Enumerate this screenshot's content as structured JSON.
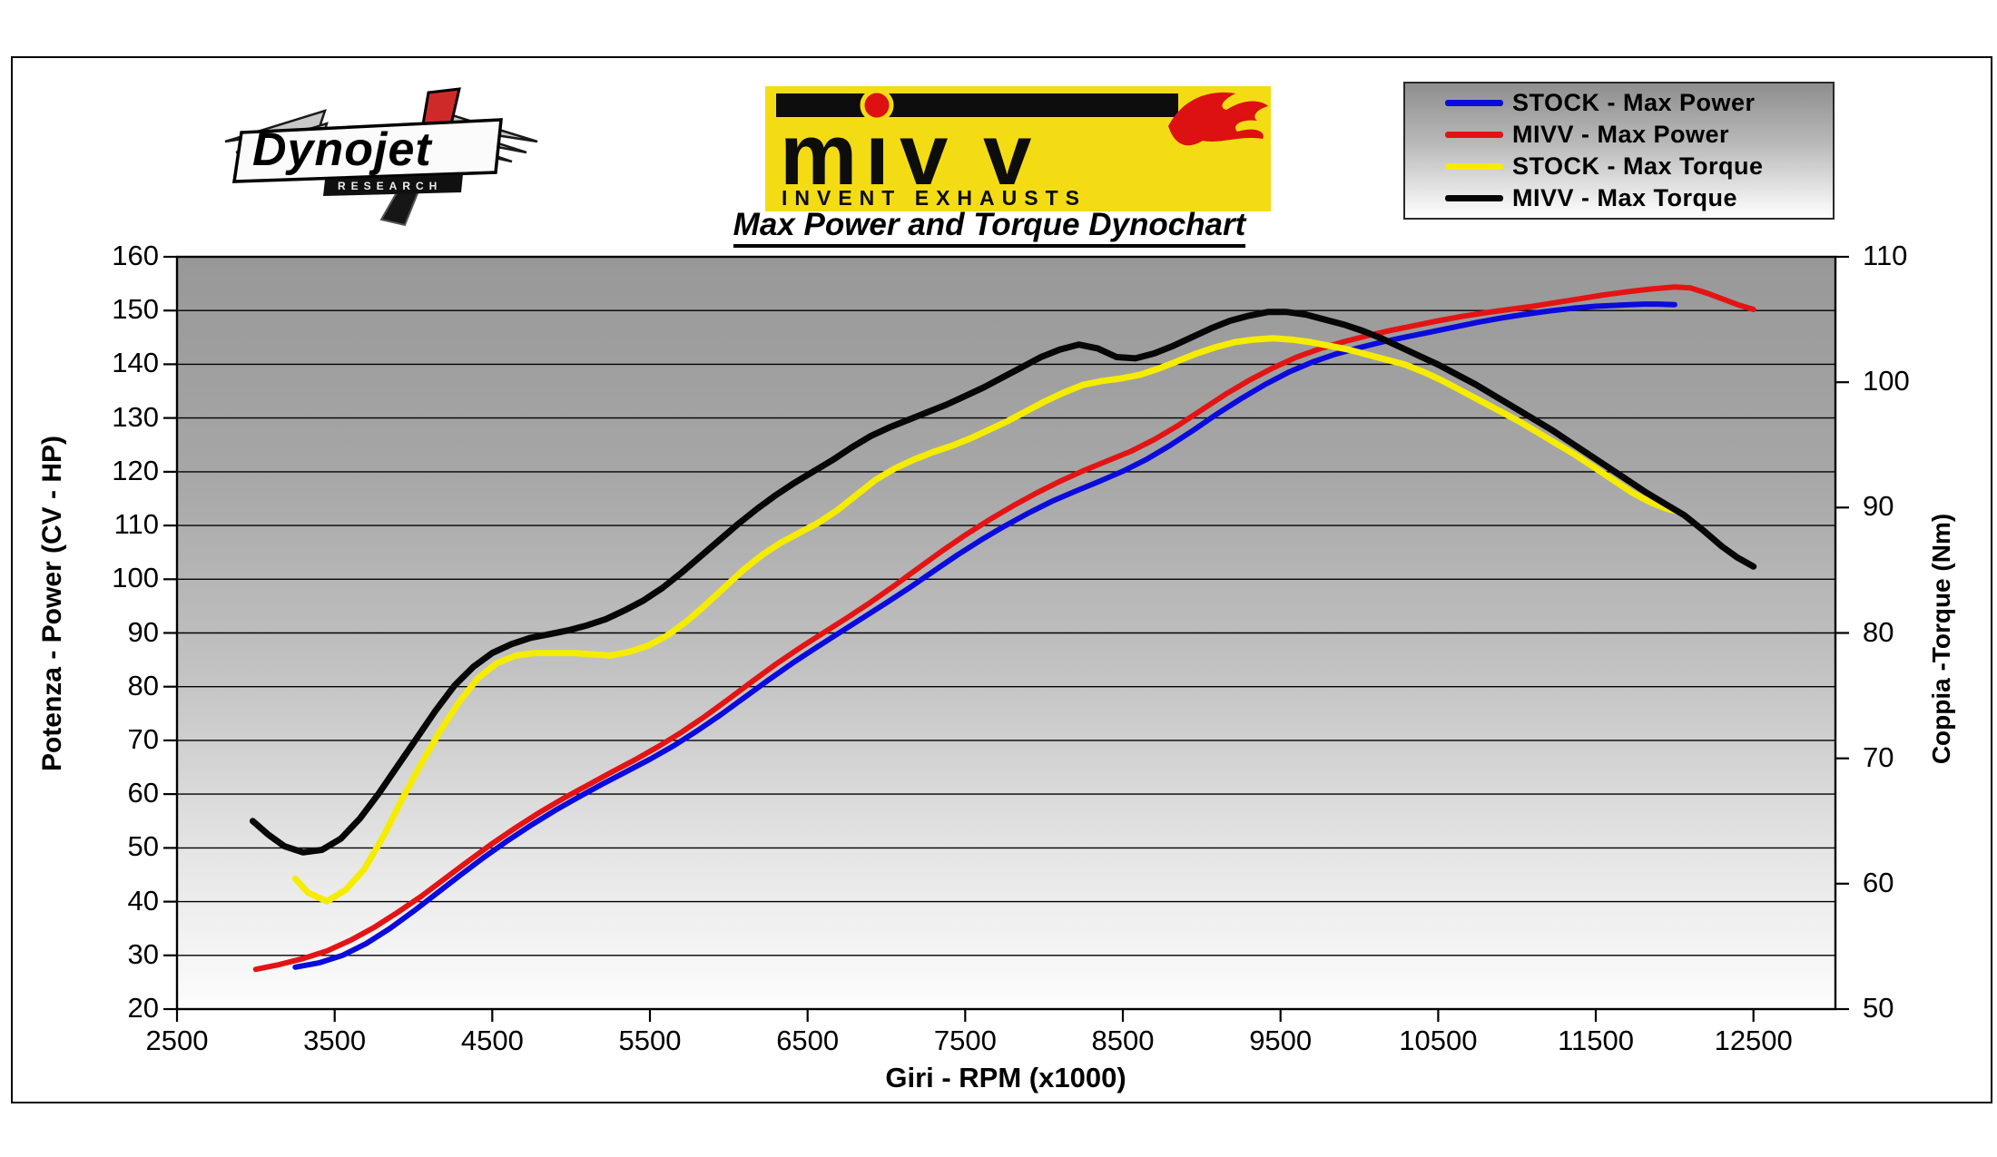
{
  "page": {
    "title": "Max Power and Torque Dynochart"
  },
  "logos": {
    "dynojet": {
      "text": "Dynojet",
      "subtext": "RESEARCH"
    },
    "mivv": {
      "text": "mivv",
      "letters_display": [
        "m",
        "ı",
        "v",
        "v"
      ],
      "tagline": "INVENT EXHAUSTS"
    }
  },
  "legend": {
    "items": [
      {
        "key": "stock_power",
        "label": "STOCK - Max Power",
        "color": "#0b0bdd"
      },
      {
        "key": "mivv_power",
        "label": "MIVV - Max Power",
        "color": "#e41414"
      },
      {
        "key": "stock_torque",
        "label": "STOCK - Max Torque",
        "color": "#f5ec00"
      },
      {
        "key": "mivv_torque",
        "label": "MIVV - Max Torque",
        "color": "#070707"
      }
    ]
  },
  "colors": {
    "banner_yellow": "#f3dc13",
    "flame_red": "#dd1111",
    "logo_red": "#cf2a2a",
    "grid_line": "#000000"
  },
  "chart_data": {
    "type": "line",
    "title": "Max Power and Torque Dynochart",
    "xlabel": "Giri - RPM (x1000)",
    "ylabel_left": "Potenza - Power (CV - HP)",
    "ylabel_right": "Coppia -Torque (Nm)",
    "x_range": [
      2500,
      13020
    ],
    "left_range": [
      20,
      160
    ],
    "right_range": [
      50,
      110
    ],
    "x_ticks": [
      2500,
      3500,
      4500,
      5500,
      6500,
      7500,
      8500,
      9500,
      10500,
      11500,
      12500
    ],
    "left_ticks": [
      160,
      150,
      140,
      130,
      120,
      110,
      100,
      90,
      80,
      70,
      60,
      50,
      40,
      30,
      20
    ],
    "right_ticks": [
      110,
      100,
      90,
      80,
      70,
      60,
      50
    ],
    "grid": "horizontal gridlines at every 10 units of left axis",
    "legend_position": "top-right",
    "series": [
      {
        "key": "stock_power",
        "name": "STOCK - Max Power",
        "color": "#0b0bdd",
        "axis": "left",
        "width": 6,
        "points": [
          [
            3250,
            27.8
          ],
          [
            3400,
            28.6
          ],
          [
            3550,
            30
          ],
          [
            3700,
            32.2
          ],
          [
            3850,
            35
          ],
          [
            4000,
            38.2
          ],
          [
            4150,
            41.6
          ],
          [
            4300,
            45
          ],
          [
            4450,
            48.3
          ],
          [
            4600,
            51.4
          ],
          [
            4750,
            54.3
          ],
          [
            4900,
            57
          ],
          [
            5050,
            59.5
          ],
          [
            5200,
            61.9
          ],
          [
            5350,
            64.2
          ],
          [
            5500,
            66.5
          ],
          [
            5650,
            69
          ],
          [
            5800,
            71.8
          ],
          [
            5950,
            74.8
          ],
          [
            6100,
            78
          ],
          [
            6250,
            81.2
          ],
          [
            6400,
            84.3
          ],
          [
            6550,
            87.2
          ],
          [
            6700,
            90
          ],
          [
            6850,
            92.8
          ],
          [
            7000,
            95.6
          ],
          [
            7150,
            98.5
          ],
          [
            7300,
            101.5
          ],
          [
            7450,
            104.5
          ],
          [
            7600,
            107.3
          ],
          [
            7750,
            109.9
          ],
          [
            7900,
            112.3
          ],
          [
            8050,
            114.5
          ],
          [
            8200,
            116.4
          ],
          [
            8350,
            118.2
          ],
          [
            8500,
            120.1
          ],
          [
            8650,
            122.3
          ],
          [
            8800,
            124.9
          ],
          [
            8950,
            127.8
          ],
          [
            9100,
            130.8
          ],
          [
            9250,
            133.6
          ],
          [
            9400,
            136.2
          ],
          [
            9550,
            138.5
          ],
          [
            9700,
            140.4
          ],
          [
            9850,
            141.9
          ],
          [
            10000,
            143.1
          ],
          [
            10150,
            144.2
          ],
          [
            10300,
            145.1
          ],
          [
            10450,
            146
          ],
          [
            10600,
            146.9
          ],
          [
            10750,
            147.8
          ],
          [
            10900,
            148.6
          ],
          [
            11050,
            149.3
          ],
          [
            11200,
            149.9
          ],
          [
            11350,
            150.4
          ],
          [
            11500,
            150.8
          ],
          [
            11650,
            151
          ],
          [
            11800,
            151.2
          ],
          [
            11900,
            151.2
          ],
          [
            12000,
            151.1
          ]
        ]
      },
      {
        "key": "mivv_power",
        "name": "MIVV - Max Power",
        "color": "#e41414",
        "axis": "left",
        "width": 6,
        "points": [
          [
            3000,
            27.4
          ],
          [
            3150,
            28.3
          ],
          [
            3300,
            29.4
          ],
          [
            3450,
            30.8
          ],
          [
            3600,
            32.8
          ],
          [
            3750,
            35.2
          ],
          [
            3900,
            38
          ],
          [
            4050,
            41
          ],
          [
            4200,
            44.3
          ],
          [
            4350,
            47.6
          ],
          [
            4500,
            50.8
          ],
          [
            4650,
            53.8
          ],
          [
            4800,
            56.6
          ],
          [
            4950,
            59.2
          ],
          [
            5100,
            61.6
          ],
          [
            5250,
            64
          ],
          [
            5400,
            66.3
          ],
          [
            5550,
            68.8
          ],
          [
            5700,
            71.5
          ],
          [
            5850,
            74.5
          ],
          [
            6000,
            77.7
          ],
          [
            6150,
            81
          ],
          [
            6300,
            84.2
          ],
          [
            6450,
            87.2
          ],
          [
            6600,
            90
          ],
          [
            6750,
            92.8
          ],
          [
            6900,
            95.7
          ],
          [
            7050,
            98.8
          ],
          [
            7200,
            102
          ],
          [
            7350,
            105.2
          ],
          [
            7500,
            108.2
          ],
          [
            7650,
            111
          ],
          [
            7800,
            113.6
          ],
          [
            7950,
            116
          ],
          [
            8100,
            118.2
          ],
          [
            8250,
            120.2
          ],
          [
            8400,
            122
          ],
          [
            8550,
            123.8
          ],
          [
            8700,
            126
          ],
          [
            8850,
            128.6
          ],
          [
            9000,
            131.5
          ],
          [
            9150,
            134.4
          ],
          [
            9300,
            137
          ],
          [
            9450,
            139.3
          ],
          [
            9600,
            141.3
          ],
          [
            9750,
            142.9
          ],
          [
            9900,
            144.2
          ],
          [
            10050,
            145.3
          ],
          [
            10200,
            146.3
          ],
          [
            10350,
            147.2
          ],
          [
            10500,
            148.1
          ],
          [
            10650,
            148.9
          ],
          [
            10800,
            149.6
          ],
          [
            10950,
            150.2
          ],
          [
            11100,
            150.8
          ],
          [
            11250,
            151.5
          ],
          [
            11400,
            152.2
          ],
          [
            11550,
            152.9
          ],
          [
            11700,
            153.5
          ],
          [
            11850,
            154
          ],
          [
            12000,
            154.4
          ],
          [
            12100,
            154.2
          ],
          [
            12200,
            153.3
          ],
          [
            12300,
            152.2
          ],
          [
            12400,
            151.1
          ],
          [
            12500,
            150.2
          ]
        ]
      },
      {
        "key": "stock_torque",
        "name": "STOCK - Max Torque",
        "color": "#f5ec00",
        "axis": "right",
        "width": 7,
        "points": [
          [
            3250,
            60.4
          ],
          [
            3330,
            59.3
          ],
          [
            3450,
            58.6
          ],
          [
            3570,
            59.5
          ],
          [
            3690,
            61.2
          ],
          [
            3810,
            63.8
          ],
          [
            3930,
            66.8
          ],
          [
            4050,
            69.6
          ],
          [
            4170,
            72.2
          ],
          [
            4290,
            74.5
          ],
          [
            4410,
            76.4
          ],
          [
            4530,
            77.6
          ],
          [
            4650,
            78.2
          ],
          [
            4770,
            78.4
          ],
          [
            4890,
            78.4
          ],
          [
            5010,
            78.4
          ],
          [
            5130,
            78.3
          ],
          [
            5250,
            78.2
          ],
          [
            5370,
            78.5
          ],
          [
            5490,
            79
          ],
          [
            5610,
            79.8
          ],
          [
            5730,
            80.9
          ],
          [
            5850,
            82.2
          ],
          [
            5970,
            83.6
          ],
          [
            6090,
            85
          ],
          [
            6210,
            86.2
          ],
          [
            6330,
            87.2
          ],
          [
            6450,
            88
          ],
          [
            6570,
            88.8
          ],
          [
            6690,
            89.8
          ],
          [
            6810,
            91
          ],
          [
            6930,
            92.2
          ],
          [
            7050,
            93.1
          ],
          [
            7170,
            93.8
          ],
          [
            7290,
            94.4
          ],
          [
            7410,
            94.9
          ],
          [
            7530,
            95.5
          ],
          [
            7650,
            96.2
          ],
          [
            7770,
            96.9
          ],
          [
            7890,
            97.7
          ],
          [
            8010,
            98.5
          ],
          [
            8130,
            99.2
          ],
          [
            8250,
            99.8
          ],
          [
            8370,
            100.1
          ],
          [
            8490,
            100.3
          ],
          [
            8610,
            100.6
          ],
          [
            8730,
            101.1
          ],
          [
            8850,
            101.7
          ],
          [
            8970,
            102.3
          ],
          [
            9090,
            102.8
          ],
          [
            9210,
            103.2
          ],
          [
            9330,
            103.4
          ],
          [
            9450,
            103.5
          ],
          [
            9570,
            103.4
          ],
          [
            9690,
            103.2
          ],
          [
            9810,
            102.9
          ],
          [
            9930,
            102.6
          ],
          [
            10050,
            102.2
          ],
          [
            10170,
            101.8
          ],
          [
            10290,
            101.4
          ],
          [
            10410,
            100.8
          ],
          [
            10530,
            100.1
          ],
          [
            10650,
            99.3
          ],
          [
            10770,
            98.5
          ],
          [
            10890,
            97.7
          ],
          [
            11010,
            96.9
          ],
          [
            11130,
            96
          ],
          [
            11250,
            95.1
          ],
          [
            11370,
            94.2
          ],
          [
            11490,
            93.2
          ],
          [
            11610,
            92.2
          ],
          [
            11730,
            91.2
          ],
          [
            11850,
            90.4
          ],
          [
            11950,
            89.9
          ],
          [
            12020,
            89.7
          ]
        ]
      },
      {
        "key": "mivv_torque",
        "name": "MIVV - Max Torque",
        "color": "#070707",
        "axis": "right",
        "width": 7,
        "points": [
          [
            2980,
            65
          ],
          [
            3080,
            63.9
          ],
          [
            3180,
            63
          ],
          [
            3300,
            62.5
          ],
          [
            3420,
            62.7
          ],
          [
            3540,
            63.6
          ],
          [
            3660,
            65.2
          ],
          [
            3780,
            67.2
          ],
          [
            3900,
            69.4
          ],
          [
            4020,
            71.6
          ],
          [
            4140,
            73.8
          ],
          [
            4260,
            75.8
          ],
          [
            4380,
            77.3
          ],
          [
            4500,
            78.4
          ],
          [
            4620,
            79.1
          ],
          [
            4740,
            79.6
          ],
          [
            4860,
            79.9
          ],
          [
            4980,
            80.2
          ],
          [
            5100,
            80.6
          ],
          [
            5220,
            81.1
          ],
          [
            5340,
            81.8
          ],
          [
            5460,
            82.6
          ],
          [
            5580,
            83.6
          ],
          [
            5700,
            84.8
          ],
          [
            5820,
            86.1
          ],
          [
            5940,
            87.4
          ],
          [
            6060,
            88.7
          ],
          [
            6180,
            89.9
          ],
          [
            6300,
            91
          ],
          [
            6420,
            92
          ],
          [
            6540,
            92.9
          ],
          [
            6660,
            93.8
          ],
          [
            6780,
            94.8
          ],
          [
            6900,
            95.7
          ],
          [
            7020,
            96.4
          ],
          [
            7140,
            97
          ],
          [
            7260,
            97.6
          ],
          [
            7380,
            98.2
          ],
          [
            7500,
            98.9
          ],
          [
            7620,
            99.6
          ],
          [
            7740,
            100.4
          ],
          [
            7860,
            101.2
          ],
          [
            7980,
            102
          ],
          [
            8100,
            102.6
          ],
          [
            8220,
            103
          ],
          [
            8340,
            102.7
          ],
          [
            8460,
            102
          ],
          [
            8580,
            101.9
          ],
          [
            8700,
            102.3
          ],
          [
            8820,
            102.9
          ],
          [
            8940,
            103.6
          ],
          [
            9060,
            104.3
          ],
          [
            9180,
            104.9
          ],
          [
            9300,
            105.3
          ],
          [
            9420,
            105.6
          ],
          [
            9540,
            105.6
          ],
          [
            9660,
            105.4
          ],
          [
            9780,
            105
          ],
          [
            9900,
            104.6
          ],
          [
            10020,
            104.1
          ],
          [
            10140,
            103.5
          ],
          [
            10260,
            102.8
          ],
          [
            10380,
            102.1
          ],
          [
            10500,
            101.4
          ],
          [
            10620,
            100.6
          ],
          [
            10740,
            99.8
          ],
          [
            10860,
            98.9
          ],
          [
            10980,
            98
          ],
          [
            11100,
            97.1
          ],
          [
            11220,
            96.2
          ],
          [
            11340,
            95.2
          ],
          [
            11460,
            94.2
          ],
          [
            11580,
            93.2
          ],
          [
            11700,
            92.2
          ],
          [
            11820,
            91.2
          ],
          [
            11940,
            90.3
          ],
          [
            12060,
            89.4
          ],
          [
            12180,
            88.2
          ],
          [
            12300,
            86.9
          ],
          [
            12400,
            86
          ],
          [
            12500,
            85.3
          ]
        ]
      }
    ]
  }
}
